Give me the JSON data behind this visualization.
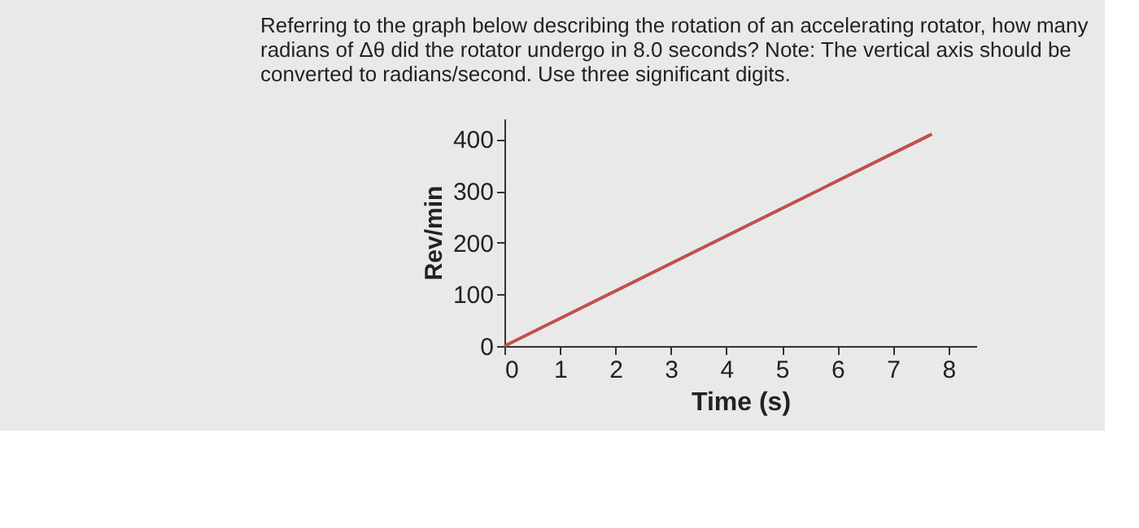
{
  "chart_data": {
    "type": "line",
    "title": "Referring to the graph below describing the rotation of an accelerating rotator, how many radians of Δθ did the rotator undergo in 8.0 seconds? Note: The vertical axis should be converted to radians/second. Use three significant digits.",
    "xlabel": "Time (s)",
    "ylabel": "Rev/min",
    "x": [
      0,
      7.7
    ],
    "series": [
      {
        "color": "#c0504d",
        "values": [
          0,
          410
        ]
      }
    ],
    "xlim": [
      0,
      8.5
    ],
    "xticks": [
      0,
      1,
      2,
      3,
      4,
      5,
      6,
      7,
      8
    ],
    "ylim": [
      0,
      440
    ],
    "yticks": [
      0,
      100,
      200,
      300,
      400
    ],
    "grid": false,
    "legend": false,
    "marker": "none",
    "line_style": "solid"
  }
}
